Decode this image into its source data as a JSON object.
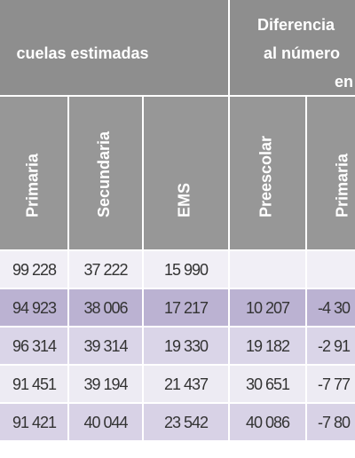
{
  "header": {
    "group_labels": [
      "cuelas estimadas",
      "Diferencia",
      "al número",
      "en"
    ],
    "columns": [
      "Primaria",
      "Secundaria",
      "EMS",
      "Preescolar",
      "Primaria"
    ]
  },
  "table": {
    "rows": [
      [
        "99 228",
        "37 222",
        "15 990"
      ],
      [
        "94 923",
        "38 006",
        "17 217",
        "10 207",
        "-4 30"
      ],
      [
        "96 314",
        "39 314",
        "19 330",
        "19 182",
        "-2 91"
      ],
      [
        "91 451",
        "39 194",
        "21 437",
        "30 651",
        "-7 77"
      ],
      [
        "91 421",
        "40 044",
        "23 542",
        "40 086",
        "-7 80"
      ]
    ]
  }
}
